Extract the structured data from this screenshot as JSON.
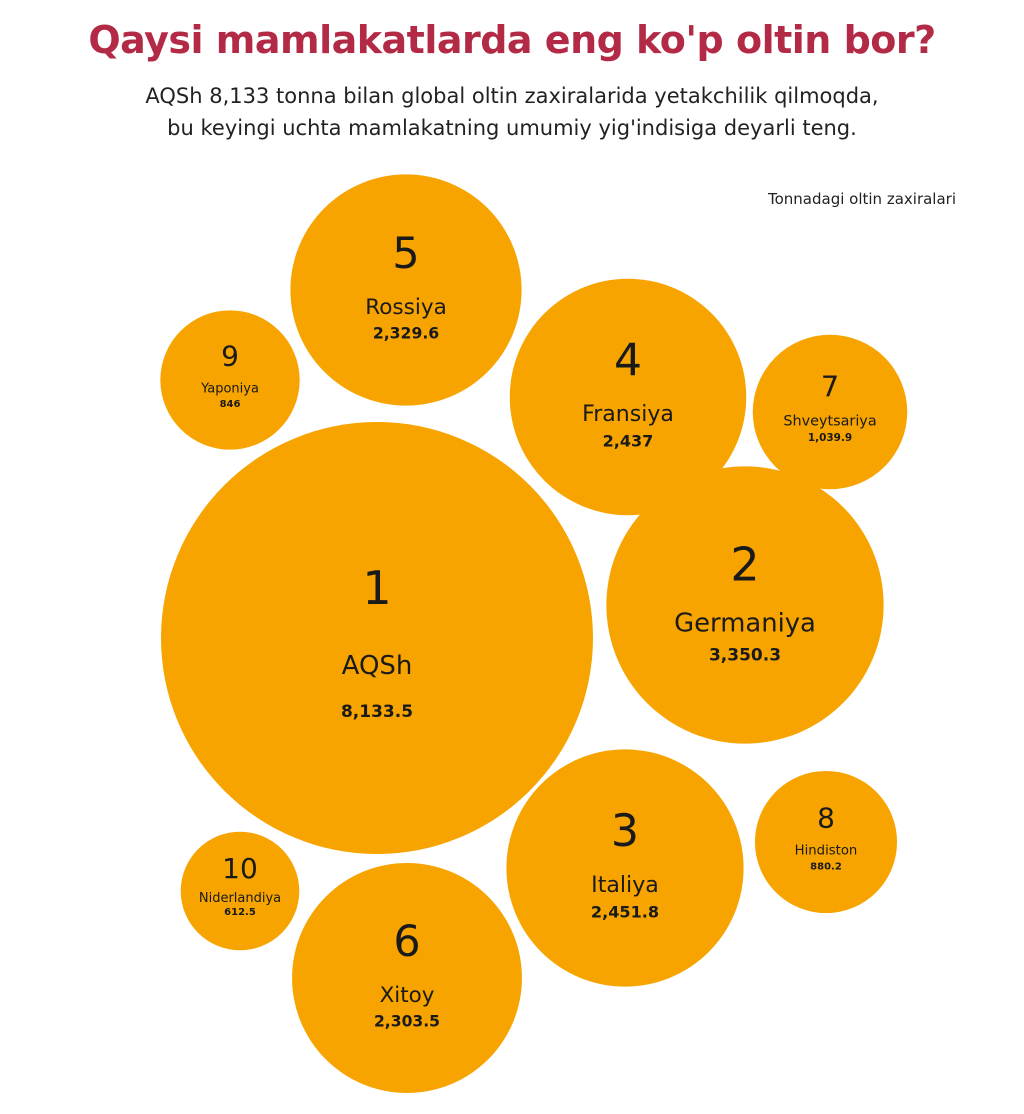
{
  "title": "Qaysi mamlakatlarda eng ko'p oltin bor?",
  "subtitle_lines": [
    "AQSh 8,133 tonna bilan global oltin zaxiralarida yetakchilik qilmoqda,",
    "bu keyingi uchta mamlakatning umumiy yig'indisiga deyarli teng."
  ],
  "unit_label": "Tonnadagi oltin zaxiralari",
  "colors": {
    "bubble": "#f7a400",
    "title": "#b22a45",
    "text": "#1a1a1a"
  },
  "chart_data": {
    "type": "bubble",
    "title": "Qaysi mamlakatlarda eng ko'p oltin bor?",
    "unit": "Tonnadagi oltin zaxiralari",
    "items": [
      {
        "rank": "1",
        "country": "AQSh",
        "value": 8133.5,
        "value_label": "8,133.5"
      },
      {
        "rank": "2",
        "country": "Germaniya",
        "value": 3350.3,
        "value_label": "3,350.3"
      },
      {
        "rank": "3",
        "country": "Italiya",
        "value": 2451.8,
        "value_label": "2,451.8"
      },
      {
        "rank": "4",
        "country": "Fransiya",
        "value": 2437,
        "value_label": "2,437"
      },
      {
        "rank": "5",
        "country": "Rossiya",
        "value": 2329.6,
        "value_label": "2,329.6"
      },
      {
        "rank": "6",
        "country": "Xitoy",
        "value": 2303.5,
        "value_label": "2,303.5"
      },
      {
        "rank": "7",
        "country": "Shveytsariya",
        "value": 1039.9,
        "value_label": "1,039.9"
      },
      {
        "rank": "8",
        "country": "Hindiston",
        "value": 880.2,
        "value_label": "880.2"
      },
      {
        "rank": "9",
        "country": "Yaponiya",
        "value": 846,
        "value_label": "846"
      },
      {
        "rank": "10",
        "country": "Niderlandiya",
        "value": 612.5,
        "value_label": "612.5"
      }
    ]
  }
}
